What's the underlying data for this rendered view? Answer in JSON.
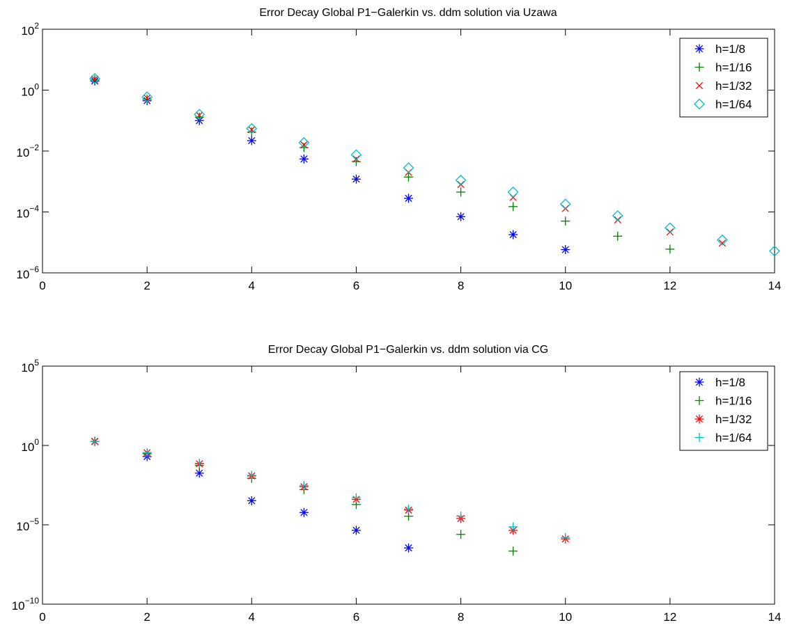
{
  "chart_data": [
    {
      "type": "scatter",
      "title": "Error Decay Global P1−Galerkin vs. ddm solution via Uzawa",
      "xlabel": "",
      "ylabel": "",
      "xlim": [
        0,
        14
      ],
      "ylim": [
        1e-06,
        100
      ],
      "yscale": "log",
      "xticks": [
        0,
        2,
        4,
        6,
        8,
        10,
        12,
        14
      ],
      "xtick_labels": [
        "0",
        "2",
        "4",
        "6",
        "8",
        "10",
        "12",
        "14"
      ],
      "yticks": [
        {
          "value": 100,
          "mantissa": "10",
          "exp": "2"
        },
        {
          "value": 1,
          "mantissa": "10",
          "exp": "0"
        },
        {
          "value": 0.01,
          "mantissa": "10",
          "exp": "−2"
        },
        {
          "value": 0.0001,
          "mantissa": "10",
          "exp": "−4"
        },
        {
          "value": 1e-06,
          "mantissa": "10",
          "exp": "−6"
        }
      ],
      "grid": false,
      "legend_position": "top-right",
      "series": [
        {
          "name": "h=1/8",
          "marker": "asterisk",
          "color": "#0000ff",
          "x": [
            1,
            2,
            3,
            4,
            5,
            6,
            7,
            8,
            9,
            10
          ],
          "y": [
            2.0,
            0.45,
            0.1,
            0.022,
            0.0055,
            0.0012,
            0.00028,
            7e-05,
            1.8e-05,
            5.8e-06
          ]
        },
        {
          "name": "h=1/16",
          "marker": "plus",
          "color": "#008000",
          "x": [
            1,
            2,
            3,
            4,
            5,
            6,
            7,
            8,
            9,
            10,
            11,
            12
          ],
          "y": [
            2.2,
            0.5,
            0.13,
            0.042,
            0.013,
            0.0045,
            0.0014,
            0.00045,
            0.00015,
            5e-05,
            1.6e-05,
            6e-06
          ]
        },
        {
          "name": "h=1/32",
          "marker": "x",
          "color": "#ff0000",
          "x": [
            1,
            2,
            3,
            4,
            5,
            6,
            7,
            8,
            9,
            10,
            11,
            12,
            13
          ],
          "y": [
            2.3,
            0.55,
            0.15,
            0.05,
            0.016,
            0.0055,
            0.002,
            0.0008,
            0.0003,
            0.00013,
            5.5e-05,
            2.2e-05,
            9.5e-06
          ]
        },
        {
          "name": "h=1/64",
          "marker": "diamond",
          "color": "#00bfbf",
          "x": [
            1,
            2,
            3,
            4,
            5,
            6,
            7,
            8,
            9,
            10,
            11,
            12,
            13,
            14
          ],
          "y": [
            2.4,
            0.6,
            0.16,
            0.055,
            0.019,
            0.0075,
            0.0028,
            0.0011,
            0.00045,
            0.00018,
            7.5e-05,
            3e-05,
            1.2e-05,
            5.2e-06
          ]
        }
      ]
    },
    {
      "type": "scatter",
      "title": "Error Decay Global P1−Galerkin vs. ddm solution via CG",
      "xlabel": "",
      "ylabel": "",
      "xlim": [
        0,
        14
      ],
      "ylim": [
        1e-10,
        100000
      ],
      "yscale": "log",
      "xticks": [
        0,
        2,
        4,
        6,
        8,
        10,
        12,
        14
      ],
      "xtick_labels": [
        "0",
        "2",
        "4",
        "6",
        "8",
        "10",
        "12",
        "14"
      ],
      "yticks": [
        {
          "value": 100000,
          "mantissa": "10",
          "exp": "5"
        },
        {
          "value": 1,
          "mantissa": "10",
          "exp": "0"
        },
        {
          "value": 1e-05,
          "mantissa": "10",
          "exp": "−5"
        },
        {
          "value": 1e-10,
          "mantissa": "10",
          "exp": "−10"
        }
      ],
      "grid": false,
      "legend_position": "top-right",
      "series": [
        {
          "name": "h=1/8",
          "marker": "asterisk",
          "color": "#0000ff",
          "x": [
            1,
            2,
            3,
            4,
            5,
            6,
            7
          ],
          "y": [
            1.8,
            0.2,
            0.018,
            0.00033,
            6e-05,
            4.5e-06,
            3.5e-07
          ]
        },
        {
          "name": "h=1/16",
          "marker": "plus",
          "color": "#008000",
          "x": [
            1,
            2,
            3,
            4,
            5,
            6,
            7,
            8,
            9
          ],
          "y": [
            1.8,
            0.3,
            0.055,
            0.0085,
            0.00165,
            0.00019,
            3.5e-05,
            2.5e-06,
            2.2e-07
          ]
        },
        {
          "name": "h=1/32",
          "marker": "asterisk",
          "color": "#ff0000",
          "x": [
            1,
            2,
            3,
            4,
            5,
            6,
            7,
            8,
            9,
            10
          ],
          "y": [
            1.8,
            0.35,
            0.07,
            0.012,
            0.0025,
            0.0004,
            8.5e-05,
            2.5e-05,
            4.5e-06,
            1.3e-06
          ]
        },
        {
          "name": "h=1/64",
          "marker": "plus",
          "color": "#00bfbf",
          "x": [
            1,
            2,
            3,
            4,
            5,
            6,
            7,
            8,
            9,
            10
          ],
          "y": [
            1.8,
            0.35,
            0.075,
            0.013,
            0.003,
            0.0005,
            0.0001,
            3.5e-05,
            7.5e-06,
            1.6e-06
          ]
        }
      ]
    }
  ]
}
